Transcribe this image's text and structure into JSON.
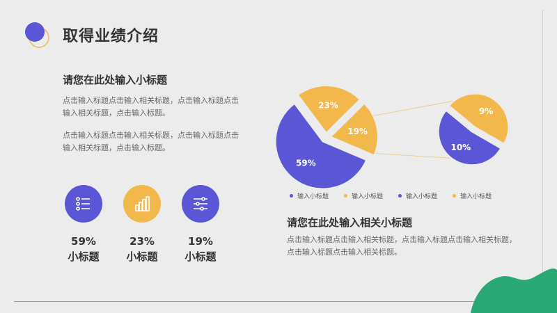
{
  "header": {
    "title": "取得业绩介绍"
  },
  "left": {
    "subtitle": "请您在此处输入小标题",
    "para1": "点击输入标题点击输入相关标题，点击输入标题点击输入相关标题，点击输入标题。",
    "para2": "点击输入标题点击输入相关标题，点击输入标题点击输入相关标题，点击输入标题。"
  },
  "stats": [
    {
      "value": "59%",
      "label": "小标题",
      "icon": "list-icon",
      "color": "#5b56d6"
    },
    {
      "value": "23%",
      "label": "小标题",
      "icon": "bar-chart-icon",
      "color": "#f2b84b"
    },
    {
      "value": "19%",
      "label": "小标题",
      "icon": "sliders-icon",
      "color": "#5b56d6"
    }
  ],
  "chart_data": {
    "type": "pie",
    "main_pie": {
      "slices": [
        {
          "label": "59%",
          "value": 59,
          "color": "#5b56d6"
        },
        {
          "label": "23%",
          "value": 23,
          "color": "#f2b84b"
        },
        {
          "label": "19%",
          "value": 19,
          "color": "#f2b84b"
        }
      ]
    },
    "detail_pie": {
      "slices": [
        {
          "label": "10%",
          "value": 10,
          "color": "#5b56d6"
        },
        {
          "label": "9%",
          "value": 9,
          "color": "#f2b84b"
        }
      ]
    },
    "legend": [
      {
        "label": "输入小标题",
        "color": "#5b56d6"
      },
      {
        "label": "输入小标题",
        "color": "#f2b84b"
      },
      {
        "label": "输入小标题",
        "color": "#5b56d6"
      },
      {
        "label": "输入小标题",
        "color": "#f2b84b"
      }
    ],
    "legend_position": "bottom"
  },
  "right": {
    "subtitle": "请您在此处输入相关小标题",
    "para": "点击输入标题点击输入相关标题，点击输入标题点击输入相关标题，点击输入标题点击输入相关标题。"
  },
  "colors": {
    "primary": "#5b56d6",
    "accent": "#f2b84b",
    "decor": "#2aa876",
    "background": "#ececec"
  }
}
